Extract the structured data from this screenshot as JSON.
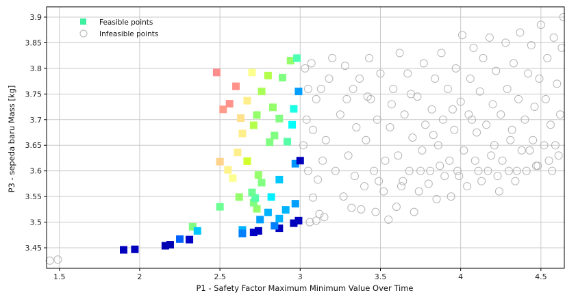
{
  "chart_data": {
    "type": "scatter",
    "title": "",
    "xlabel": "P1 - Safety Factor Maximum Minimum Value Over Time",
    "ylabel": "P3 - sepeda baru Mass  [kg]",
    "xlim": [
      1.42,
      4.65
    ],
    "ylim": [
      3.41,
      3.92
    ],
    "xticks": [
      "1.5",
      "2",
      "2.5",
      "3",
      "3.5",
      "4",
      "4.5"
    ],
    "yticks": [
      "3.45",
      "3.5",
      "3.55",
      "3.6",
      "3.65",
      "3.7",
      "3.75",
      "3.8",
      "3.85",
      "3.9"
    ],
    "grid": true,
    "legend_position": "top-left",
    "series": [
      {
        "name": "Feasible points",
        "marker": "square",
        "color_legend": "#3cf0a0",
        "color_scale": "jet",
        "points": [
          {
            "x": 1.9,
            "y": 3.446,
            "c": 0.06
          },
          {
            "x": 1.97,
            "y": 3.447,
            "c": 0.06
          },
          {
            "x": 2.16,
            "y": 3.454,
            "c": 0.05
          },
          {
            "x": 2.19,
            "y": 3.456,
            "c": 0.05
          },
          {
            "x": 2.31,
            "y": 3.466,
            "c": 0.07
          },
          {
            "x": 2.25,
            "y": 3.467,
            "c": 0.22
          },
          {
            "x": 2.33,
            "y": 3.491,
            "c": 0.5
          },
          {
            "x": 2.36,
            "y": 3.483,
            "c": 0.32
          },
          {
            "x": 2.64,
            "y": 3.485,
            "c": 0.3
          },
          {
            "x": 2.64,
            "y": 3.478,
            "c": 0.25
          },
          {
            "x": 2.71,
            "y": 3.48,
            "c": 0.07
          },
          {
            "x": 2.74,
            "y": 3.483,
            "c": 0.06
          },
          {
            "x": 2.87,
            "y": 3.488,
            "c": 0.06
          },
          {
            "x": 2.96,
            "y": 3.498,
            "c": 0.06
          },
          {
            "x": 2.99,
            "y": 3.503,
            "c": 0.06
          },
          {
            "x": 2.84,
            "y": 3.493,
            "c": 0.25
          },
          {
            "x": 2.75,
            "y": 3.505,
            "c": 0.28
          },
          {
            "x": 2.87,
            "y": 3.507,
            "c": 0.3
          },
          {
            "x": 2.8,
            "y": 3.519,
            "c": 0.3
          },
          {
            "x": 2.91,
            "y": 3.524,
            "c": 0.3
          },
          {
            "x": 2.97,
            "y": 3.536,
            "c": 0.28
          },
          {
            "x": 2.5,
            "y": 3.53,
            "c": 0.48
          },
          {
            "x": 2.73,
            "y": 3.526,
            "c": 0.52
          },
          {
            "x": 2.71,
            "y": 3.538,
            "c": 0.5
          },
          {
            "x": 2.72,
            "y": 3.547,
            "c": 0.46
          },
          {
            "x": 2.7,
            "y": 3.558,
            "c": 0.48
          },
          {
            "x": 2.82,
            "y": 3.549,
            "c": 0.36
          },
          {
            "x": 2.62,
            "y": 3.549,
            "c": 0.52
          },
          {
            "x": 2.76,
            "y": 3.577,
            "c": 0.5
          },
          {
            "x": 2.87,
            "y": 3.583,
            "c": 0.32
          },
          {
            "x": 2.74,
            "y": 3.592,
            "c": 0.52
          },
          {
            "x": 2.97,
            "y": 3.614,
            "c": 0.27
          },
          {
            "x": 3.0,
            "y": 3.62,
            "c": 0.06
          },
          {
            "x": 2.58,
            "y": 3.586,
            "c": 0.62
          },
          {
            "x": 2.55,
            "y": 3.602,
            "c": 0.65
          },
          {
            "x": 2.5,
            "y": 3.618,
            "c": 0.72
          },
          {
            "x": 2.61,
            "y": 3.636,
            "c": 0.66
          },
          {
            "x": 2.67,
            "y": 3.619,
            "c": 0.58
          },
          {
            "x": 2.81,
            "y": 3.656,
            "c": 0.5
          },
          {
            "x": 2.84,
            "y": 3.669,
            "c": 0.5
          },
          {
            "x": 2.92,
            "y": 3.657,
            "c": 0.46
          },
          {
            "x": 2.95,
            "y": 3.69,
            "c": 0.38
          },
          {
            "x": 2.64,
            "y": 3.673,
            "c": 0.66
          },
          {
            "x": 2.71,
            "y": 3.689,
            "c": 0.55
          },
          {
            "x": 2.73,
            "y": 3.709,
            "c": 0.52
          },
          {
            "x": 2.63,
            "y": 3.703,
            "c": 0.69
          },
          {
            "x": 2.87,
            "y": 3.702,
            "c": 0.5
          },
          {
            "x": 2.83,
            "y": 3.724,
            "c": 0.52
          },
          {
            "x": 2.96,
            "y": 3.721,
            "c": 0.4
          },
          {
            "x": 2.52,
            "y": 3.72,
            "c": 0.84
          },
          {
            "x": 2.56,
            "y": 3.731,
            "c": 0.86
          },
          {
            "x": 2.67,
            "y": 3.737,
            "c": 0.66
          },
          {
            "x": 2.76,
            "y": 3.755,
            "c": 0.54
          },
          {
            "x": 2.99,
            "y": 3.755,
            "c": 0.28
          },
          {
            "x": 2.6,
            "y": 3.765,
            "c": 0.86
          },
          {
            "x": 2.48,
            "y": 3.792,
            "c": 0.88
          },
          {
            "x": 2.7,
            "y": 3.792,
            "c": 0.62
          },
          {
            "x": 2.8,
            "y": 3.786,
            "c": 0.55
          },
          {
            "x": 2.89,
            "y": 3.782,
            "c": 0.5
          },
          {
            "x": 2.94,
            "y": 3.815,
            "c": 0.52
          },
          {
            "x": 2.98,
            "y": 3.82,
            "c": 0.45
          }
        ]
      },
      {
        "name": "Infeasible points",
        "marker": "circle",
        "color": "#b4b4b4",
        "points": [
          {
            "x": 1.44,
            "y": 3.425
          },
          {
            "x": 1.49,
            "y": 3.427
          },
          {
            "x": 3.06,
            "y": 3.5
          },
          {
            "x": 3.1,
            "y": 3.503
          },
          {
            "x": 3.15,
            "y": 3.51
          },
          {
            "x": 3.12,
            "y": 3.516
          },
          {
            "x": 3.08,
            "y": 3.548
          },
          {
            "x": 3.05,
            "y": 3.6
          },
          {
            "x": 3.11,
            "y": 3.583
          },
          {
            "x": 3.02,
            "y": 3.65
          },
          {
            "x": 3.08,
            "y": 3.68
          },
          {
            "x": 3.04,
            "y": 3.7
          },
          {
            "x": 3.05,
            "y": 3.76
          },
          {
            "x": 3.07,
            "y": 3.81
          },
          {
            "x": 3.1,
            "y": 3.74
          },
          {
            "x": 3.14,
            "y": 3.62
          },
          {
            "x": 3.16,
            "y": 3.66
          },
          {
            "x": 3.18,
            "y": 3.78
          },
          {
            "x": 3.2,
            "y": 3.82
          },
          {
            "x": 3.22,
            "y": 3.6
          },
          {
            "x": 3.25,
            "y": 3.71
          },
          {
            "x": 3.27,
            "y": 3.55
          },
          {
            "x": 3.28,
            "y": 3.805
          },
          {
            "x": 3.3,
            "y": 3.63
          },
          {
            "x": 3.32,
            "y": 3.528
          },
          {
            "x": 3.33,
            "y": 3.76
          },
          {
            "x": 3.35,
            "y": 3.685
          },
          {
            "x": 3.37,
            "y": 3.78
          },
          {
            "x": 3.38,
            "y": 3.525
          },
          {
            "x": 3.4,
            "y": 3.57
          },
          {
            "x": 3.41,
            "y": 3.66
          },
          {
            "x": 3.43,
            "y": 3.82
          },
          {
            "x": 3.44,
            "y": 3.74
          },
          {
            "x": 3.46,
            "y": 3.6
          },
          {
            "x": 3.47,
            "y": 3.52
          },
          {
            "x": 3.48,
            "y": 3.7
          },
          {
            "x": 3.5,
            "y": 3.79
          },
          {
            "x": 3.52,
            "y": 3.56
          },
          {
            "x": 3.53,
            "y": 3.62
          },
          {
            "x": 3.55,
            "y": 3.505
          },
          {
            "x": 3.56,
            "y": 3.685
          },
          {
            "x": 3.58,
            "y": 3.76
          },
          {
            "x": 3.6,
            "y": 3.53
          },
          {
            "x": 3.61,
            "y": 3.63
          },
          {
            "x": 3.62,
            "y": 3.83
          },
          {
            "x": 3.64,
            "y": 3.58
          },
          {
            "x": 3.65,
            "y": 3.71
          },
          {
            "x": 3.67,
            "y": 3.79
          },
          {
            "x": 3.68,
            "y": 3.6
          },
          {
            "x": 3.7,
            "y": 3.665
          },
          {
            "x": 3.71,
            "y": 3.52
          },
          {
            "x": 3.73,
            "y": 3.745
          },
          {
            "x": 3.74,
            "y": 3.56
          },
          {
            "x": 3.76,
            "y": 3.64
          },
          {
            "x": 3.77,
            "y": 3.81
          },
          {
            "x": 3.78,
            "y": 3.69
          },
          {
            "x": 3.8,
            "y": 3.575
          },
          {
            "x": 3.81,
            "y": 3.6
          },
          {
            "x": 3.82,
            "y": 3.72
          },
          {
            "x": 3.84,
            "y": 3.78
          },
          {
            "x": 3.85,
            "y": 3.545
          },
          {
            "x": 3.86,
            "y": 3.65
          },
          {
            "x": 3.88,
            "y": 3.83
          },
          {
            "x": 3.89,
            "y": 3.7
          },
          {
            "x": 3.9,
            "y": 3.59
          },
          {
            "x": 3.92,
            "y": 3.76
          },
          {
            "x": 3.93,
            "y": 3.62
          },
          {
            "x": 3.94,
            "y": 3.55
          },
          {
            "x": 3.96,
            "y": 3.68
          },
          {
            "x": 3.97,
            "y": 3.8
          },
          {
            "x": 3.98,
            "y": 3.6
          },
          {
            "x": 4.0,
            "y": 3.735
          },
          {
            "x": 4.01,
            "y": 3.865
          },
          {
            "x": 4.02,
            "y": 3.64
          },
          {
            "x": 4.04,
            "y": 3.57
          },
          {
            "x": 4.05,
            "y": 3.71
          },
          {
            "x": 4.06,
            "y": 3.78
          },
          {
            "x": 4.08,
            "y": 3.84
          },
          {
            "x": 4.09,
            "y": 3.62
          },
          {
            "x": 4.1,
            "y": 3.675
          },
          {
            "x": 4.12,
            "y": 3.755
          },
          {
            "x": 4.13,
            "y": 3.58
          },
          {
            "x": 4.14,
            "y": 3.82
          },
          {
            "x": 4.16,
            "y": 3.69
          },
          {
            "x": 4.17,
            "y": 3.6
          },
          {
            "x": 4.18,
            "y": 3.86
          },
          {
            "x": 4.2,
            "y": 3.73
          },
          {
            "x": 4.21,
            "y": 3.65
          },
          {
            "x": 4.22,
            "y": 3.795
          },
          {
            "x": 4.24,
            "y": 3.56
          },
          {
            "x": 4.25,
            "y": 3.71
          },
          {
            "x": 4.26,
            "y": 3.62
          },
          {
            "x": 4.28,
            "y": 3.85
          },
          {
            "x": 4.29,
            "y": 3.76
          },
          {
            "x": 4.3,
            "y": 3.6
          },
          {
            "x": 4.32,
            "y": 3.68
          },
          {
            "x": 4.33,
            "y": 3.81
          },
          {
            "x": 4.34,
            "y": 3.58
          },
          {
            "x": 4.36,
            "y": 3.74
          },
          {
            "x": 4.37,
            "y": 3.87
          },
          {
            "x": 4.38,
            "y": 3.64
          },
          {
            "x": 4.4,
            "y": 3.7
          },
          {
            "x": 4.41,
            "y": 3.6
          },
          {
            "x": 4.42,
            "y": 3.79
          },
          {
            "x": 4.44,
            "y": 3.845
          },
          {
            "x": 4.45,
            "y": 3.66
          },
          {
            "x": 4.46,
            "y": 3.725
          },
          {
            "x": 4.48,
            "y": 3.61
          },
          {
            "x": 4.49,
            "y": 3.78
          },
          {
            "x": 4.5,
            "y": 3.885
          },
          {
            "x": 4.52,
            "y": 3.65
          },
          {
            "x": 4.53,
            "y": 3.74
          },
          {
            "x": 4.54,
            "y": 3.82
          },
          {
            "x": 4.56,
            "y": 3.69
          },
          {
            "x": 4.57,
            "y": 3.6
          },
          {
            "x": 4.58,
            "y": 3.86
          },
          {
            "x": 4.6,
            "y": 3.77
          },
          {
            "x": 4.61,
            "y": 3.63
          },
          {
            "x": 4.62,
            "y": 3.71
          },
          {
            "x": 4.63,
            "y": 3.84
          },
          {
            "x": 4.64,
            "y": 3.9
          },
          {
            "x": 3.03,
            "y": 3.8
          },
          {
            "x": 3.13,
            "y": 3.76
          },
          {
            "x": 3.29,
            "y": 3.74
          },
          {
            "x": 3.42,
            "y": 3.745
          },
          {
            "x": 3.57,
            "y": 3.73
          },
          {
            "x": 3.69,
            "y": 3.75
          },
          {
            "x": 3.83,
            "y": 3.67
          },
          {
            "x": 3.95,
            "y": 3.72
          },
          {
            "x": 4.07,
            "y": 3.7
          },
          {
            "x": 4.19,
            "y": 3.63
          },
          {
            "x": 4.31,
            "y": 3.66
          },
          {
            "x": 4.43,
            "y": 3.64
          },
          {
            "x": 4.55,
            "y": 3.62
          },
          {
            "x": 3.34,
            "y": 3.59
          },
          {
            "x": 3.49,
            "y": 3.58
          },
          {
            "x": 3.63,
            "y": 3.57
          },
          {
            "x": 3.75,
            "y": 3.6
          },
          {
            "x": 3.87,
            "y": 3.61
          },
          {
            "x": 3.99,
            "y": 3.59
          },
          {
            "x": 4.11,
            "y": 3.6
          },
          {
            "x": 4.23,
            "y": 3.59
          },
          {
            "x": 4.35,
            "y": 3.6
          },
          {
            "x": 4.47,
            "y": 3.61
          },
          {
            "x": 4.59,
            "y": 3.65
          }
        ]
      }
    ]
  }
}
